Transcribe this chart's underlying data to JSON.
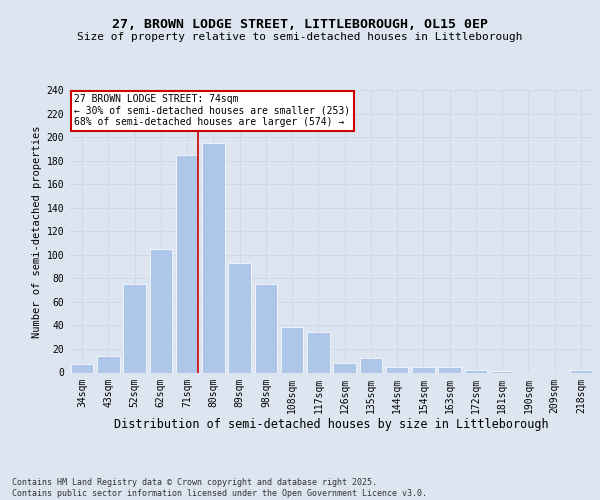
{
  "title1": "27, BROWN LODGE STREET, LITTLEBOROUGH, OL15 0EP",
  "title2": "Size of property relative to semi-detached houses in Littleborough",
  "xlabel": "Distribution of semi-detached houses by size in Littleborough",
  "ylabel": "Number of semi-detached properties",
  "categories": [
    "34sqm",
    "43sqm",
    "52sqm",
    "62sqm",
    "71sqm",
    "80sqm",
    "89sqm",
    "98sqm",
    "108sqm",
    "117sqm",
    "126sqm",
    "135sqm",
    "144sqm",
    "154sqm",
    "163sqm",
    "172sqm",
    "181sqm",
    "190sqm",
    "209sqm",
    "218sqm"
  ],
  "values": [
    7,
    14,
    75,
    105,
    185,
    195,
    93,
    75,
    39,
    34,
    8,
    12,
    5,
    5,
    5,
    2,
    1,
    0,
    0,
    2
  ],
  "bar_color": "#aec6e8",
  "bar_edge_color": "#ffffff",
  "property_bin_index": 4,
  "annotation_title": "27 BROWN LODGE STREET: 74sqm",
  "annotation_line1": "← 30% of semi-detached houses are smaller (253)",
  "annotation_line2": "68% of semi-detached houses are larger (574) →",
  "annotation_box_color": "#ffffff",
  "annotation_box_edge": "#cc0000",
  "vline_color": "#cc0000",
  "grid_color": "#d0d8e8",
  "background_color": "#dde6f0",
  "footer": "Contains HM Land Registry data © Crown copyright and database right 2025.\nContains public sector information licensed under the Open Government Licence v3.0.",
  "ylim": [
    0,
    240
  ],
  "yticks": [
    0,
    20,
    40,
    60,
    80,
    100,
    120,
    140,
    160,
    180,
    200,
    220,
    240
  ],
  "title1_fontsize": 9.5,
  "title2_fontsize": 8.0,
  "xlabel_fontsize": 8.5,
  "ylabel_fontsize": 7.5,
  "tick_fontsize": 7.0,
  "ann_fontsize": 7.0,
  "footer_fontsize": 6.0
}
